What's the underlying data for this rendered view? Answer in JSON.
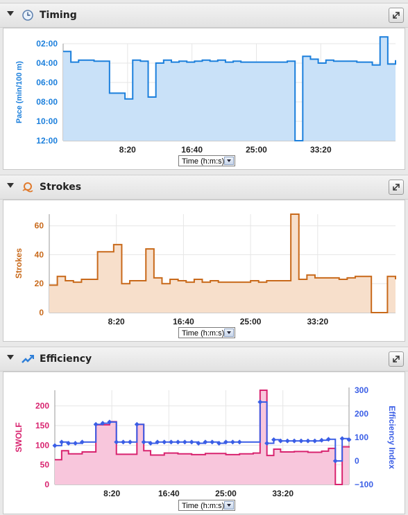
{
  "sections": {
    "timing": {
      "title": "Timing",
      "icon": "clock-icon"
    },
    "strokes": {
      "title": "Strokes",
      "icon": "swim-icon"
    },
    "efficiency": {
      "title": "Efficiency",
      "icon": "trend-icon"
    }
  },
  "x_axis_select": "Time (h:m:s)",
  "colors": {
    "pace": "#1b7fdc",
    "pace_fill": "#c9e1f8",
    "strokes": "#c8691a",
    "strokes_fill": "#f7dfcb",
    "swolf": "#d8236f",
    "swolf_fill": "#f8c6dc",
    "efficiency": "#3a5ee6"
  },
  "chart_data": [
    {
      "type": "area",
      "title": "Timing",
      "ylabel": "Pace (min/100 m)",
      "ylim": [
        2,
        12
      ],
      "y_reversed": true,
      "yticks": [
        "02:00",
        "04:00",
        "06:00",
        "08:00",
        "10:00",
        "12:00"
      ],
      "xticks": [
        "8:20",
        "16:40",
        "25:00",
        "33:20"
      ],
      "x_range_min": [
        0,
        43
      ],
      "series": [
        {
          "type": "step",
          "x": [
            0,
            1,
            2,
            4,
            6,
            8,
            9,
            10,
            11,
            12,
            13,
            14,
            15,
            16,
            17,
            18,
            19,
            20,
            21,
            22,
            23,
            24,
            25,
            26,
            27,
            28,
            29,
            30,
            31,
            32,
            33,
            34,
            35,
            36,
            37,
            38,
            39,
            40,
            41,
            42,
            43
          ],
          "values": [
            2.8,
            3.9,
            3.7,
            3.8,
            7.1,
            7.7,
            3.7,
            3.8,
            7.5,
            4.0,
            3.7,
            3.9,
            3.8,
            3.9,
            3.8,
            3.7,
            3.8,
            3.7,
            3.9,
            3.8,
            3.9,
            3.9,
            3.9,
            3.9,
            3.9,
            3.9,
            3.8,
            12.0,
            3.3,
            3.6,
            4.0,
            3.7,
            3.8,
            3.8,
            3.8,
            3.9,
            3.9,
            4.2,
            1.3,
            4.1,
            3.7
          ]
        }
      ]
    },
    {
      "type": "area",
      "title": "Strokes",
      "ylabel": "Strokes",
      "ylim": [
        0,
        68
      ],
      "yticks": [
        "0",
        "20",
        "40",
        "60"
      ],
      "xticks": [
        "8:20",
        "16:40",
        "25:00",
        "33:20"
      ],
      "x_range_min": [
        0,
        43
      ],
      "series": [
        {
          "type": "step",
          "x": [
            0,
            1,
            2,
            3,
            4,
            6,
            8,
            9,
            10,
            12,
            13,
            14,
            15,
            16,
            17,
            18,
            19,
            20,
            21,
            22,
            25,
            26,
            27,
            30,
            31,
            32,
            33,
            34,
            35,
            36,
            37,
            38,
            39,
            40,
            41,
            42,
            43
          ],
          "values": [
            19,
            25,
            22,
            21,
            23,
            42,
            47,
            20,
            22,
            44,
            24,
            20,
            23,
            22,
            21,
            23,
            21,
            22,
            21,
            21,
            22,
            21,
            22,
            68,
            23,
            26,
            24,
            24,
            24,
            23,
            24,
            25,
            25,
            0,
            0,
            25,
            23
          ]
        }
      ]
    },
    {
      "type": "line",
      "title": "Efficiency",
      "ylabel": "SWOLF",
      "y2label": "Efficiency Index",
      "ylim": [
        0,
        240
      ],
      "y2lim": [
        -100,
        300
      ],
      "yticks": [
        "0",
        "50",
        "100",
        "150",
        "200"
      ],
      "y2ticks": [
        "−100",
        "0",
        "100",
        "200",
        "300"
      ],
      "xticks": [
        "8:20",
        "16:40",
        "25:00",
        "33:20"
      ],
      "x_range_min": [
        0,
        43
      ],
      "series": [
        {
          "type": "step",
          "axis": "left",
          "x": [
            0,
            1,
            2,
            4,
            6,
            8,
            9,
            12,
            13,
            14,
            16,
            18,
            20,
            22,
            25,
            27,
            29,
            30,
            31,
            32,
            33,
            35,
            37,
            39,
            40,
            41,
            42,
            43
          ],
          "values": [
            63,
            86,
            78,
            83,
            152,
            160,
            77,
            153,
            86,
            75,
            80,
            78,
            76,
            79,
            76,
            78,
            80,
            240,
            74,
            90,
            83,
            84,
            82,
            85,
            92,
            0,
            96,
            94
          ]
        },
        {
          "type": "step",
          "axis": "right",
          "markers": true,
          "x": [
            0,
            1,
            2,
            3,
            4,
            6,
            7,
            8,
            9,
            10,
            11,
            12,
            13,
            14,
            15,
            16,
            17,
            18,
            19,
            20,
            21,
            22,
            23,
            24,
            25,
            26,
            27,
            30,
            31,
            32,
            33,
            34,
            35,
            36,
            37,
            38,
            39,
            40,
            41,
            42,
            43
          ],
          "values": [
            65,
            80,
            75,
            75,
            80,
            155,
            160,
            165,
            80,
            80,
            80,
            155,
            80,
            75,
            80,
            80,
            80,
            80,
            80,
            80,
            75,
            80,
            80,
            75,
            80,
            80,
            80,
            250,
            75,
            90,
            85,
            85,
            85,
            85,
            85,
            85,
            88,
            92,
            0,
            95,
            90
          ]
        }
      ]
    }
  ]
}
